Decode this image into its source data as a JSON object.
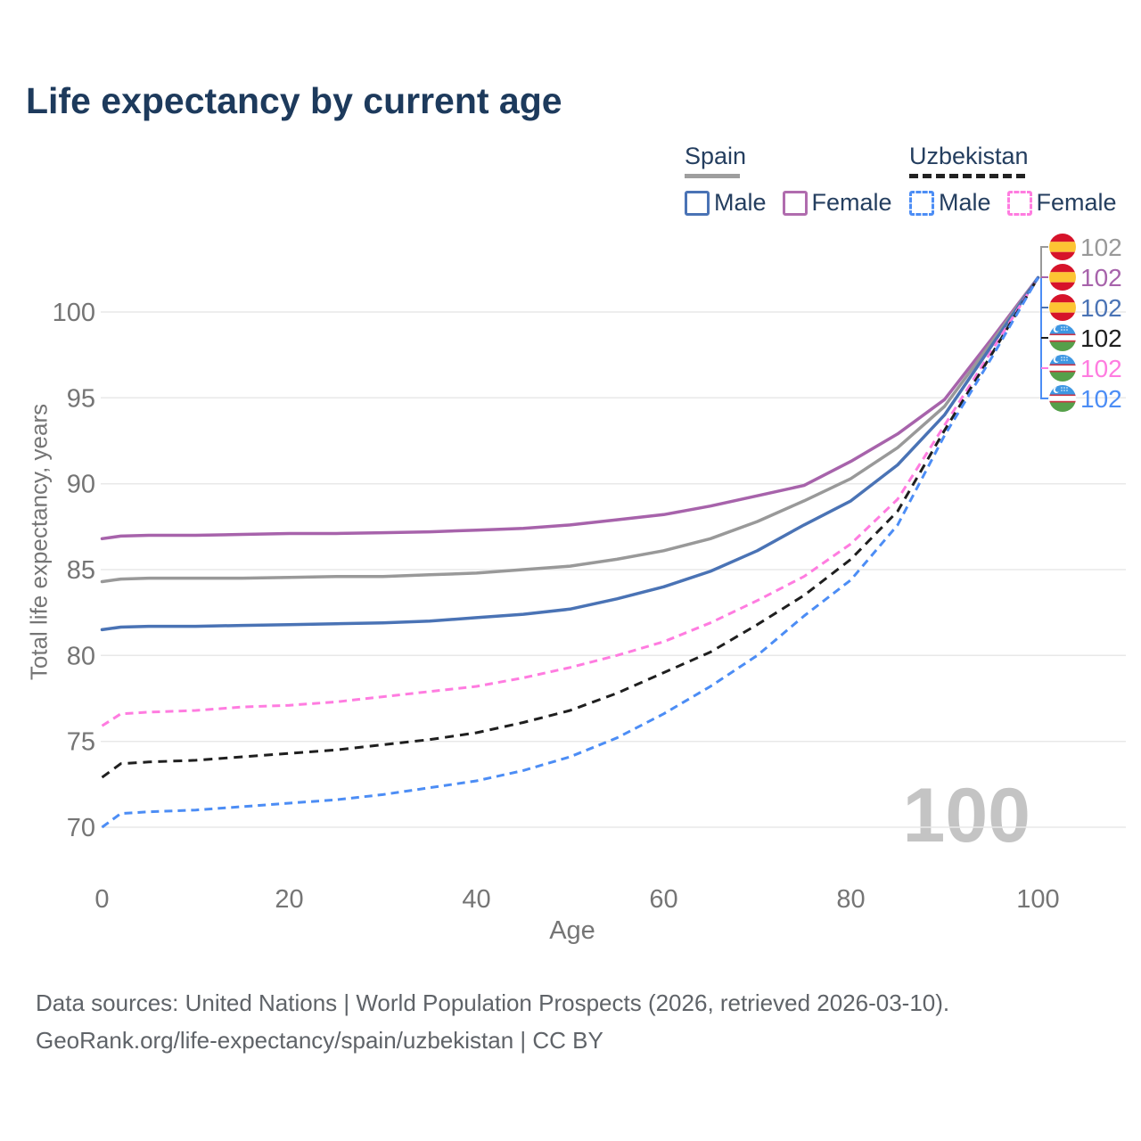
{
  "title": "Life expectancy by current age",
  "watermark": "100",
  "legend": {
    "groups": [
      {
        "id": "spain",
        "label": "Spain",
        "line_style": "solid",
        "underline_color": "#9e9e9e",
        "items": [
          {
            "label": "Male",
            "color": "#4a73b5"
          },
          {
            "label": "Female",
            "color": "#b06cae"
          }
        ]
      },
      {
        "id": "uzbekistan",
        "label": "Uzbekistan",
        "line_style": "dashed",
        "underline_color": "#222222",
        "items": [
          {
            "label": "Male",
            "color": "#4c8df5"
          },
          {
            "label": "Female",
            "color": "#ff7ce0"
          }
        ]
      }
    ]
  },
  "footer": {
    "line1": "Data sources: United Nations | World Population Prospects (2026, retrieved 2026-03-10).",
    "line2": "GeoRank.org/life-expectancy/spain/uzbekistan | CC BY"
  },
  "chart_data": {
    "type": "line",
    "title": "Life expectancy by current age",
    "xlabel": "Age",
    "ylabel": "Total life expectancy, years",
    "xlim": [
      0,
      100
    ],
    "ylim": [
      68,
      102.5
    ],
    "xticks": [
      0,
      20,
      40,
      60,
      80,
      100
    ],
    "yticks": [
      70,
      75,
      80,
      85,
      90,
      95,
      100
    ],
    "grid": "horizontal-only",
    "legend_position": "top-right",
    "x": [
      0,
      2,
      5,
      10,
      15,
      20,
      25,
      30,
      35,
      40,
      45,
      50,
      55,
      60,
      65,
      70,
      75,
      80,
      85,
      90,
      95,
      100
    ],
    "series": [
      {
        "id": "spain-female",
        "name": "Spain — Female",
        "country": "Spain",
        "sex": "Female",
        "color": "#a763ab",
        "style": "solid",
        "values": [
          86.8,
          86.95,
          87.0,
          87.0,
          87.05,
          87.1,
          87.1,
          87.15,
          87.2,
          87.3,
          87.4,
          87.6,
          87.9,
          88.2,
          88.7,
          89.3,
          89.9,
          91.3,
          92.9,
          94.9,
          98.4,
          102
        ]
      },
      {
        "id": "spain-total",
        "name": "Spain — Both sexes",
        "country": "Spain",
        "sex": "Both",
        "color": "#999999",
        "style": "solid",
        "values": [
          84.3,
          84.45,
          84.5,
          84.5,
          84.5,
          84.55,
          84.6,
          84.6,
          84.7,
          84.8,
          85.0,
          85.2,
          85.6,
          86.1,
          86.8,
          87.8,
          89.0,
          90.3,
          92.1,
          94.5,
          98.2,
          102
        ]
      },
      {
        "id": "spain-male",
        "name": "Spain — Male",
        "country": "Spain",
        "sex": "Male",
        "color": "#4a73b5",
        "style": "solid",
        "values": [
          81.5,
          81.65,
          81.7,
          81.7,
          81.75,
          81.8,
          81.85,
          81.9,
          82.0,
          82.2,
          82.4,
          82.7,
          83.3,
          84.0,
          84.9,
          86.1,
          87.6,
          89.0,
          91.1,
          94.0,
          98.0,
          102
        ]
      },
      {
        "id": "uzbekistan-female",
        "name": "Uzbekistan — Female",
        "country": "Uzbekistan",
        "sex": "Female",
        "color": "#ff7ce0",
        "style": "dashed",
        "values": [
          75.9,
          76.6,
          76.7,
          76.8,
          77.0,
          77.1,
          77.3,
          77.6,
          77.9,
          78.2,
          78.7,
          79.3,
          80.0,
          80.8,
          81.9,
          83.2,
          84.6,
          86.5,
          89.1,
          93.4,
          97.7,
          102
        ]
      },
      {
        "id": "uzbekistan-total",
        "name": "Uzbekistan — Both sexes",
        "country": "Uzbekistan",
        "sex": "Both",
        "color": "#1f1f1f",
        "style": "dashed",
        "values": [
          72.9,
          73.7,
          73.8,
          73.9,
          74.1,
          74.3,
          74.5,
          74.8,
          75.1,
          75.5,
          76.1,
          76.8,
          77.8,
          79.0,
          80.2,
          81.8,
          83.5,
          85.6,
          88.4,
          93.1,
          97.5,
          102
        ]
      },
      {
        "id": "uzbekistan-male",
        "name": "Uzbekistan — Male",
        "country": "Uzbekistan",
        "sex": "Male",
        "color": "#4c8df5",
        "style": "dashed",
        "values": [
          70.0,
          70.8,
          70.9,
          71.0,
          71.2,
          71.4,
          71.6,
          71.9,
          72.3,
          72.7,
          73.3,
          74.1,
          75.2,
          76.6,
          78.2,
          80.0,
          82.3,
          84.4,
          87.6,
          92.8,
          97.3,
          102
        ]
      }
    ],
    "end_labels": [
      {
        "value": 102,
        "flag": "es",
        "series": "spain-total",
        "color": "#999999"
      },
      {
        "value": 102,
        "flag": "es",
        "series": "spain-female",
        "color": "#a763ab"
      },
      {
        "value": 102,
        "flag": "es",
        "series": "spain-male",
        "color": "#4a73b5"
      },
      {
        "value": 102,
        "flag": "uz",
        "series": "uzbekistan-total",
        "color": "#1f1f1f"
      },
      {
        "value": 102,
        "flag": "uz",
        "series": "uzbekistan-female",
        "color": "#ff7ce0"
      },
      {
        "value": 102,
        "flag": "uz",
        "series": "uzbekistan-male",
        "color": "#4c8df5"
      }
    ]
  }
}
